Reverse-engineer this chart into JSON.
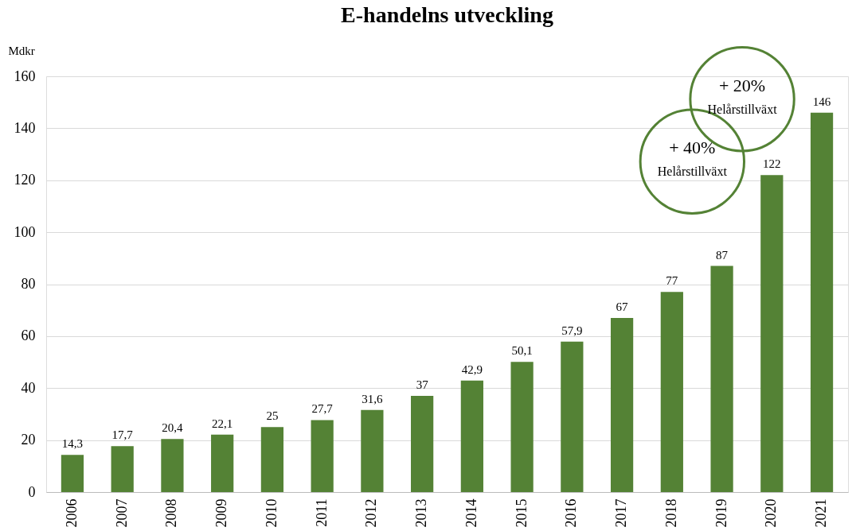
{
  "chart_data": {
    "type": "bar",
    "title": "E-handelns utveckling",
    "ylabel": "Mdkr",
    "categories": [
      "2006",
      "2007",
      "2008",
      "2009",
      "2010",
      "2011",
      "2012",
      "2013",
      "2014",
      "2015",
      "2016",
      "2017",
      "2018",
      "2019",
      "2020",
      "2021"
    ],
    "values": [
      14.3,
      17.7,
      20.4,
      22.1,
      25,
      27.7,
      31.6,
      37,
      42.9,
      50.1,
      57.9,
      67,
      77,
      87,
      122,
      146
    ],
    "value_labels": [
      "14,3",
      "17,7",
      "20,4",
      "22,1",
      "25",
      "27,7",
      "31,6",
      "37",
      "42,9",
      "50,1",
      "57,9",
      "67",
      "77",
      "87",
      "122",
      "146"
    ],
    "color": "#548235",
    "ylim": [
      0,
      160
    ],
    "yticks": [
      0,
      20,
      40,
      60,
      80,
      100,
      120,
      140,
      160
    ],
    "grid": "y",
    "annotations": [
      {
        "text": "+ 40%\nHelårstillväxt",
        "x": "2020",
        "y": 122
      },
      {
        "text": "+ 20%\nHelårstillväxt",
        "x": "2021",
        "y": 146
      }
    ]
  }
}
